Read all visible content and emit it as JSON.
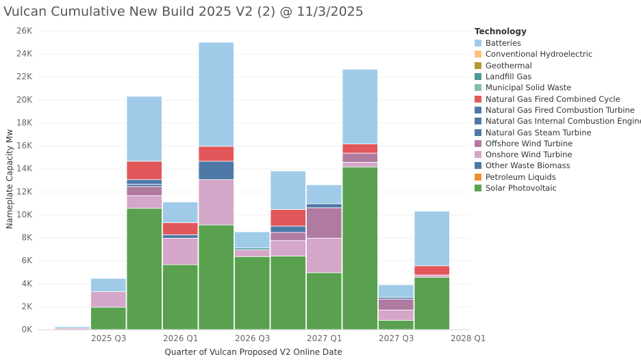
{
  "title": "Vulcan Cumulative New Build 2025 V2 (2) @ 11/3/2025",
  "chart_data": {
    "type": "bar",
    "stacked": true,
    "xlabel": "Quarter of Vulcan Proposed V2 Online Date",
    "ylabel": "Nameplate Capacity Mw",
    "ylim": [
      0,
      26000
    ],
    "y_ticks": [
      0,
      2000,
      4000,
      6000,
      8000,
      10000,
      12000,
      14000,
      16000,
      18000,
      20000,
      22000,
      24000,
      26000
    ],
    "y_tick_labels": [
      "0K",
      "2K",
      "4K",
      "6K",
      "8K",
      "10K",
      "12K",
      "14K",
      "16K",
      "18K",
      "20K",
      "22K",
      "24K",
      "26K"
    ],
    "categories": [
      "2025 Q2",
      "2025 Q3",
      "2025 Q4",
      "2026 Q1",
      "2026 Q2",
      "2026 Q3",
      "2026 Q4",
      "2027 Q1",
      "2027 Q2",
      "2027 Q3",
      "2027 Q4",
      "2028 Q1"
    ],
    "x_tick_labels": [
      "2025 Q3",
      "2026 Q1",
      "2026 Q3",
      "2027 Q1",
      "2027 Q3",
      "2028 Q1"
    ],
    "x_tick_categories": [
      "2025 Q3",
      "2026 Q1",
      "2026 Q3",
      "2027 Q1",
      "2027 Q3",
      "2028 Q1"
    ],
    "grid": true,
    "legend_title": "Technology",
    "legend_position": "right",
    "series": [
      {
        "name": "Solar Photovoltaic",
        "color": "#59a14f",
        "values": [
          0,
          1950,
          10550,
          5650,
          9100,
          6350,
          6400,
          4950,
          14150,
          800,
          4550,
          0
        ]
      },
      {
        "name": "Petroleum Liquids",
        "color": "#f28e2b",
        "values": [
          0,
          0,
          0,
          0,
          0,
          0,
          0,
          0,
          0,
          0,
          0,
          0
        ]
      },
      {
        "name": "Other Waste Biomass",
        "color": "#4e79a7",
        "values": [
          0,
          0,
          0,
          0,
          0,
          0,
          0,
          0,
          0,
          0,
          0,
          0
        ]
      },
      {
        "name": "Onshore Wind Turbine",
        "color": "#d4a6c8",
        "values": [
          130,
          1350,
          1100,
          2300,
          3950,
          600,
          1350,
          3000,
          400,
          900,
          200,
          0
        ]
      },
      {
        "name": "Offshore Wind Turbine",
        "color": "#b07aa1",
        "values": [
          0,
          0,
          800,
          0,
          0,
          0,
          700,
          2650,
          800,
          950,
          0,
          0
        ]
      },
      {
        "name": "Natural Gas Steam Turbine",
        "color": "#4e79a7",
        "values": [
          0,
          0,
          0,
          0,
          0,
          0,
          0,
          0,
          0,
          0,
          0,
          0
        ]
      },
      {
        "name": "Natural Gas Internal Combustion Engine",
        "color": "#4e79a7",
        "values": [
          0,
          0,
          200,
          0,
          0,
          0,
          0,
          0,
          0,
          0,
          0,
          0
        ]
      },
      {
        "name": "Natural Gas Fired Combustion Turbine",
        "color": "#4e79a7",
        "values": [
          0,
          0,
          400,
          300,
          1600,
          0,
          550,
          350,
          0,
          150,
          0,
          0
        ]
      },
      {
        "name": "Natural Gas Fired Combined Cycle",
        "color": "#e15759",
        "values": [
          0,
          0,
          1600,
          1050,
          1300,
          0,
          1450,
          0,
          800,
          0,
          800,
          0
        ]
      },
      {
        "name": "Municipal Solid Waste",
        "color": "#86bcb6",
        "values": [
          0,
          0,
          0,
          0,
          0,
          0,
          0,
          0,
          0,
          0,
          0,
          0
        ]
      },
      {
        "name": "Landfill Gas",
        "color": "#499894",
        "values": [
          0,
          0,
          0,
          0,
          0,
          150,
          0,
          0,
          0,
          0,
          0,
          0
        ]
      },
      {
        "name": "Geothermal",
        "color": "#b6992d",
        "values": [
          0,
          0,
          0,
          0,
          0,
          0,
          0,
          0,
          0,
          0,
          0,
          0
        ]
      },
      {
        "name": "Conventional Hydroelectric",
        "color": "#ffbe7d",
        "values": [
          0,
          0,
          0,
          0,
          0,
          0,
          0,
          0,
          0,
          0,
          0,
          0
        ]
      },
      {
        "name": "Batteries",
        "color": "#a0cbe8",
        "values": [
          130,
          1150,
          5650,
          1800,
          9050,
          1400,
          3350,
          1650,
          6500,
          1100,
          4750,
          0
        ]
      }
    ],
    "legend_order": [
      "Batteries",
      "Conventional Hydroelectric",
      "Geothermal",
      "Landfill Gas",
      "Municipal Solid Waste",
      "Natural Gas Fired Combined Cycle",
      "Natural Gas Fired Combustion Turbine",
      "Natural Gas Internal Combustion Engine",
      "Natural Gas Steam Turbine",
      "Offshore Wind Turbine",
      "Onshore Wind Turbine",
      "Other Waste Biomass",
      "Petroleum Liquids",
      "Solar Photovoltaic"
    ]
  }
}
